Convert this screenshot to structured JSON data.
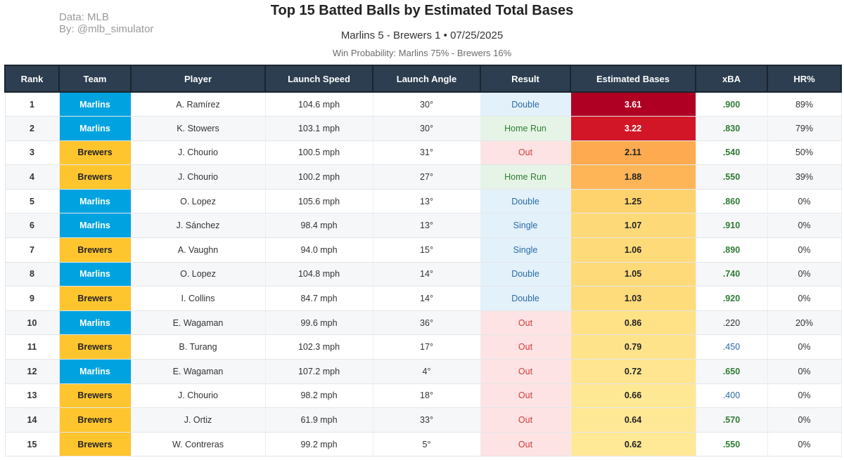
{
  "header": {
    "source_line1": "Data: MLB",
    "source_line2": "By: @mlb_simulator",
    "title": "Top 15 Batted Balls by Estimated Total Bases",
    "subtitle": "Marlins 5 - Brewers 1  •  07/25/2025",
    "win_probability": "Win Probability: Marlins 75% - Brewers 16%"
  },
  "colors": {
    "header_bg": "#2c3e50",
    "marlins": "#00a3e0",
    "brewers": "#ffc52f",
    "result_hit_bg": "#e3f1fb",
    "result_hr_bg": "#e6f4e7",
    "result_out_bg": "#fde3e3",
    "xba_green": "#2e7d32",
    "xba_blue": "#2b6aa6"
  },
  "chart_data": {
    "type": "table",
    "title": "Top 15 Batted Balls by Estimated Total Bases",
    "columns": [
      "Rank",
      "Team",
      "Player",
      "Launch Speed",
      "Launch Angle",
      "Result",
      "Estimated Bases",
      "xBA",
      "HR%"
    ],
    "rows": [
      {
        "rank": "1",
        "team": "Marlins",
        "player": "A. Ramírez",
        "speed": "104.6 mph",
        "angle": "30°",
        "result": "Double",
        "est": "3.61",
        "xba": ".900",
        "hr": "89%"
      },
      {
        "rank": "2",
        "team": "Marlins",
        "player": "K. Stowers",
        "speed": "103.1 mph",
        "angle": "30°",
        "result": "Home Run",
        "est": "3.22",
        "xba": ".830",
        "hr": "79%"
      },
      {
        "rank": "3",
        "team": "Brewers",
        "player": "J. Chourio",
        "speed": "100.5 mph",
        "angle": "31°",
        "result": "Out",
        "est": "2.11",
        "xba": ".540",
        "hr": "50%"
      },
      {
        "rank": "4",
        "team": "Brewers",
        "player": "J. Chourio",
        "speed": "100.2 mph",
        "angle": "27°",
        "result": "Home Run",
        "est": "1.88",
        "xba": ".550",
        "hr": "39%"
      },
      {
        "rank": "5",
        "team": "Marlins",
        "player": "O. Lopez",
        "speed": "105.6 mph",
        "angle": "13°",
        "result": "Double",
        "est": "1.25",
        "xba": ".860",
        "hr": "0%"
      },
      {
        "rank": "6",
        "team": "Marlins",
        "player": "J. Sánchez",
        "speed": "98.4 mph",
        "angle": "13°",
        "result": "Single",
        "est": "1.07",
        "xba": ".910",
        "hr": "0%"
      },
      {
        "rank": "7",
        "team": "Brewers",
        "player": "A. Vaughn",
        "speed": "94.0 mph",
        "angle": "15°",
        "result": "Single",
        "est": "1.06",
        "xba": ".890",
        "hr": "0%"
      },
      {
        "rank": "8",
        "team": "Marlins",
        "player": "O. Lopez",
        "speed": "104.8 mph",
        "angle": "14°",
        "result": "Double",
        "est": "1.05",
        "xba": ".740",
        "hr": "0%"
      },
      {
        "rank": "9",
        "team": "Brewers",
        "player": "I. Collins",
        "speed": "84.7 mph",
        "angle": "14°",
        "result": "Double",
        "est": "1.03",
        "xba": ".920",
        "hr": "0%"
      },
      {
        "rank": "10",
        "team": "Marlins",
        "player": "E. Wagaman",
        "speed": "99.6 mph",
        "angle": "36°",
        "result": "Out",
        "est": "0.86",
        "xba": ".220",
        "hr": "20%"
      },
      {
        "rank": "11",
        "team": "Brewers",
        "player": "B. Turang",
        "speed": "102.3 mph",
        "angle": "17°",
        "result": "Out",
        "est": "0.79",
        "xba": ".450",
        "hr": "0%"
      },
      {
        "rank": "12",
        "team": "Marlins",
        "player": "E. Wagaman",
        "speed": "107.2 mph",
        "angle": "4°",
        "result": "Out",
        "est": "0.72",
        "xba": ".650",
        "hr": "0%"
      },
      {
        "rank": "13",
        "team": "Brewers",
        "player": "J. Chourio",
        "speed": "98.2 mph",
        "angle": "18°",
        "result": "Out",
        "est": "0.66",
        "xba": ".400",
        "hr": "0%"
      },
      {
        "rank": "14",
        "team": "Brewers",
        "player": "J. Ortiz",
        "speed": "61.9 mph",
        "angle": "33°",
        "result": "Out",
        "est": "0.64",
        "xba": ".570",
        "hr": "0%"
      },
      {
        "rank": "15",
        "team": "Brewers",
        "player": "W. Contreras",
        "speed": "99.2 mph",
        "angle": "5°",
        "result": "Out",
        "est": "0.62",
        "xba": ".550",
        "hr": "0%"
      }
    ]
  }
}
